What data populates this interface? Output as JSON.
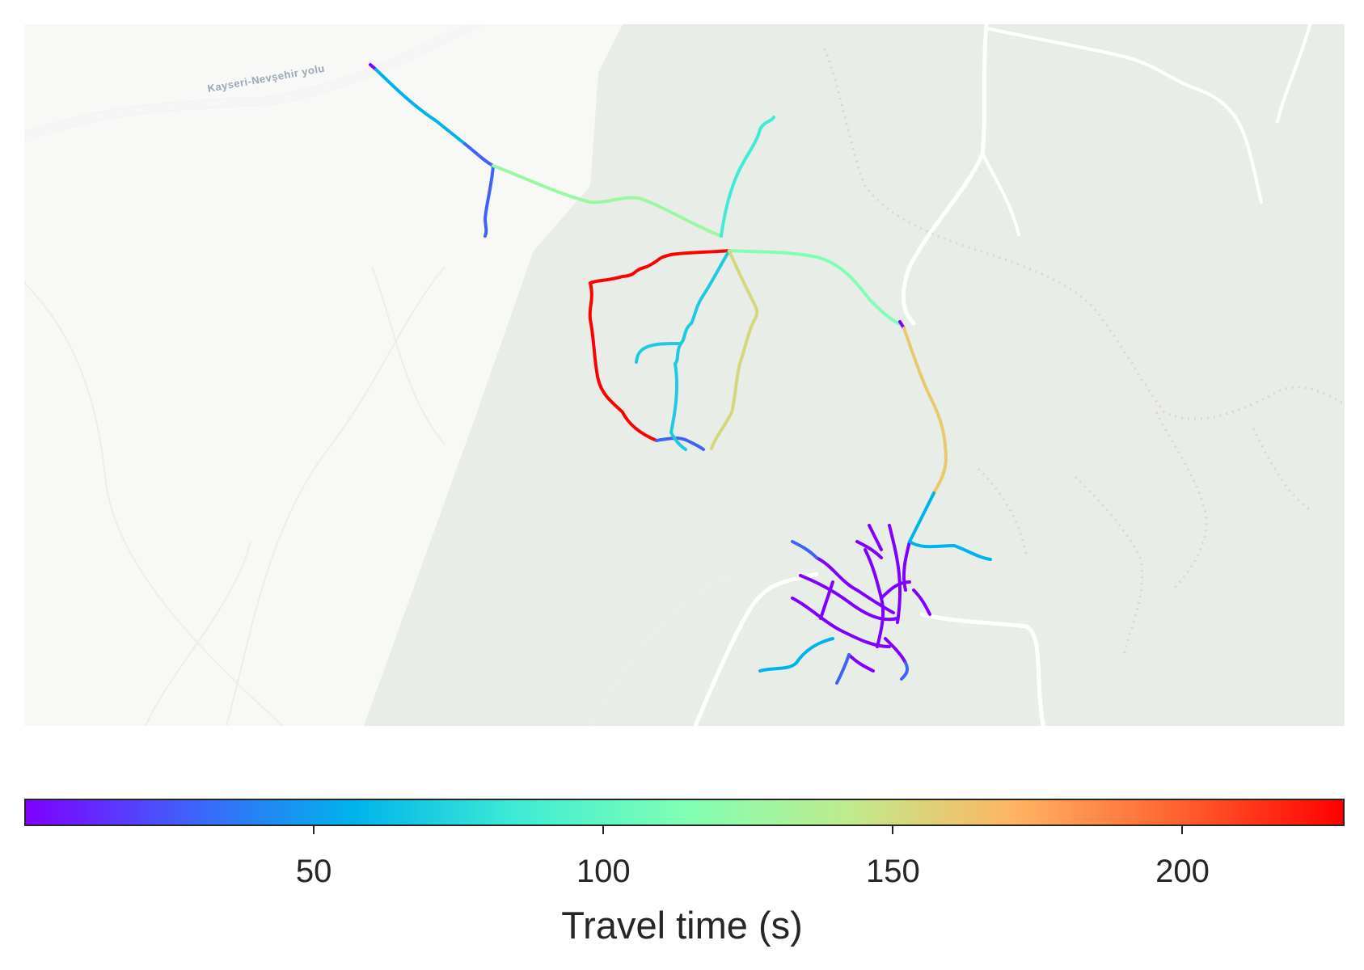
{
  "map": {
    "road_label": "Kayseri-Nevşehir yolu",
    "base_colors": {
      "land": "#f8f8f7",
      "park": "#e8ede8",
      "road": "#ffffff",
      "trail": "#e6c7c7"
    }
  },
  "colorbar": {
    "label": "Travel time (s)",
    "range": [
      0,
      228
    ],
    "ticks": [
      {
        "value": 50,
        "label": "50"
      },
      {
        "value": 100,
        "label": "100"
      },
      {
        "value": 150,
        "label": "150"
      },
      {
        "value": 200,
        "label": "200"
      }
    ],
    "colormap": "rainbow",
    "gradient_stops": [
      "#7f00ff",
      "#3f62f9",
      "#00b4eb",
      "#40ecd4",
      "#80ffb4",
      "#c0eb8d",
      "#ffb462",
      "#ff6230",
      "#ff0000"
    ]
  }
}
